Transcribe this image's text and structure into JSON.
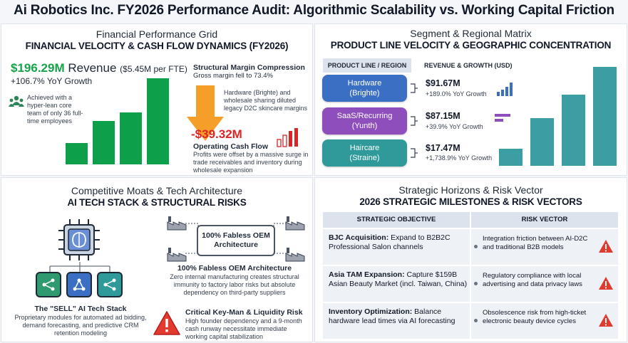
{
  "title": "Ai Robotics Inc. FY2026 Performance Audit: Algorithmic Scalability vs. Working Capital Friction",
  "financial": {
    "heading": "Financial Performance Grid",
    "subheading": "FINANCIAL VELOCITY & CASH FLOW DYNAMICS (FY2026)",
    "revenue_value": "$196.29M",
    "revenue_label": "Revenue",
    "revenue_per_fte": "($5.45M per FTE)",
    "revenue_growth": "+106.7% YoY Growth",
    "team_note": "Achieved with a hyper-lean core team of only 36 full-time employees",
    "margin_title": "Structural Margin Compression",
    "margin_sub": "Gross margin fell to 73.4%",
    "margin_note": "Hardware (Brighte) and wholesale sharing diluted legacy D2C skincare margins",
    "cashflow_value": "-$39.32M",
    "cashflow_label": "Operating Cash Flow",
    "cashflow_note": "Profits were offset by a massive surge in trade receivables and inventory during wholesale expansion",
    "growth_bar_levels": [
      0.25,
      0.5,
      0.6,
      1.0
    ]
  },
  "segment": {
    "heading": "Segment & Regional Matrix",
    "subheading": "PRODUCT LINE VELOCITY & GEOGRAPHIC CONCENTRATION",
    "col_product": "PRODUCT LINE / REGION",
    "col_revenue": "REVENUE & GROWTH (USD)",
    "rows": [
      {
        "line1": "Hardware",
        "line2": "(Brighte)",
        "value": "$91.67M",
        "growth": "+189.0% YoY Growth",
        "color": "#3b6fc4"
      },
      {
        "line1": "SaaS/Recurring",
        "line2": "(Yunth)",
        "value": "$87.15M",
        "growth": "+39.9% YoY Growth",
        "color": "#8e4fbd"
      },
      {
        "line1": "Haircare",
        "line2": "(Straine)",
        "value": "$17.47M",
        "growth": "+1,738.9% YoY Growth",
        "color": "#2f9a99"
      }
    ],
    "bar_levels": [
      0.17,
      0.48,
      0.72,
      1.0
    ]
  },
  "tech": {
    "heading": "Competitive Moats & Tech Architecture",
    "subheading": "AI TECH STACK & STRUCTURAL RISKS",
    "stack_title": "The \"SELL\" AI Tech Stack",
    "stack_note": "Proprietary modules for automated ad bidding, demand forecasting, and predictive CRM retention modeling",
    "oem_box": "100% Fabless OEM Architecture",
    "oem_title": "100% Fabless OEM Architecture",
    "oem_note": "Zero internal manufacturing creates structural immunity to factory labor risks but absolute dependency on third-party suppliers",
    "risk_title": "Critical Key-Man & Liquidity Risk",
    "risk_note": "High founder dependency and a 9-month cash runway necessitate immediate working capital stabilization"
  },
  "strategy": {
    "heading": "Strategic Horizons & Risk Vector",
    "subheading": "2026 STRATEGIC MILESTONES & RISK VECTORS",
    "col_objective": "STRATEGIC OBJECTIVE",
    "col_risk": "RISK VECTOR",
    "rows": [
      {
        "bold": "BJC Acquisition:",
        "text": " Expand to B2B2C Professional Salon channels",
        "risk": "Integration friction between AI-D2C and traditional B2B models"
      },
      {
        "bold": "Asia TAM Expansion:",
        "text": " Capture $159B Asian Beauty Market (incl. Taiwan, China)",
        "risk": "Regulatory compliance with local advertising and data privacy laws"
      },
      {
        "bold": "Inventory Optimization:",
        "text": " Balance hardware lead times via AI forecasting",
        "risk": "Obsolescence risk from high-ticket electronic beauty device cycles"
      }
    ]
  },
  "colors": {
    "green": "#16a34a",
    "red": "#dc2626",
    "orange": "#f59e2a",
    "teal": "#3a9ea3"
  }
}
